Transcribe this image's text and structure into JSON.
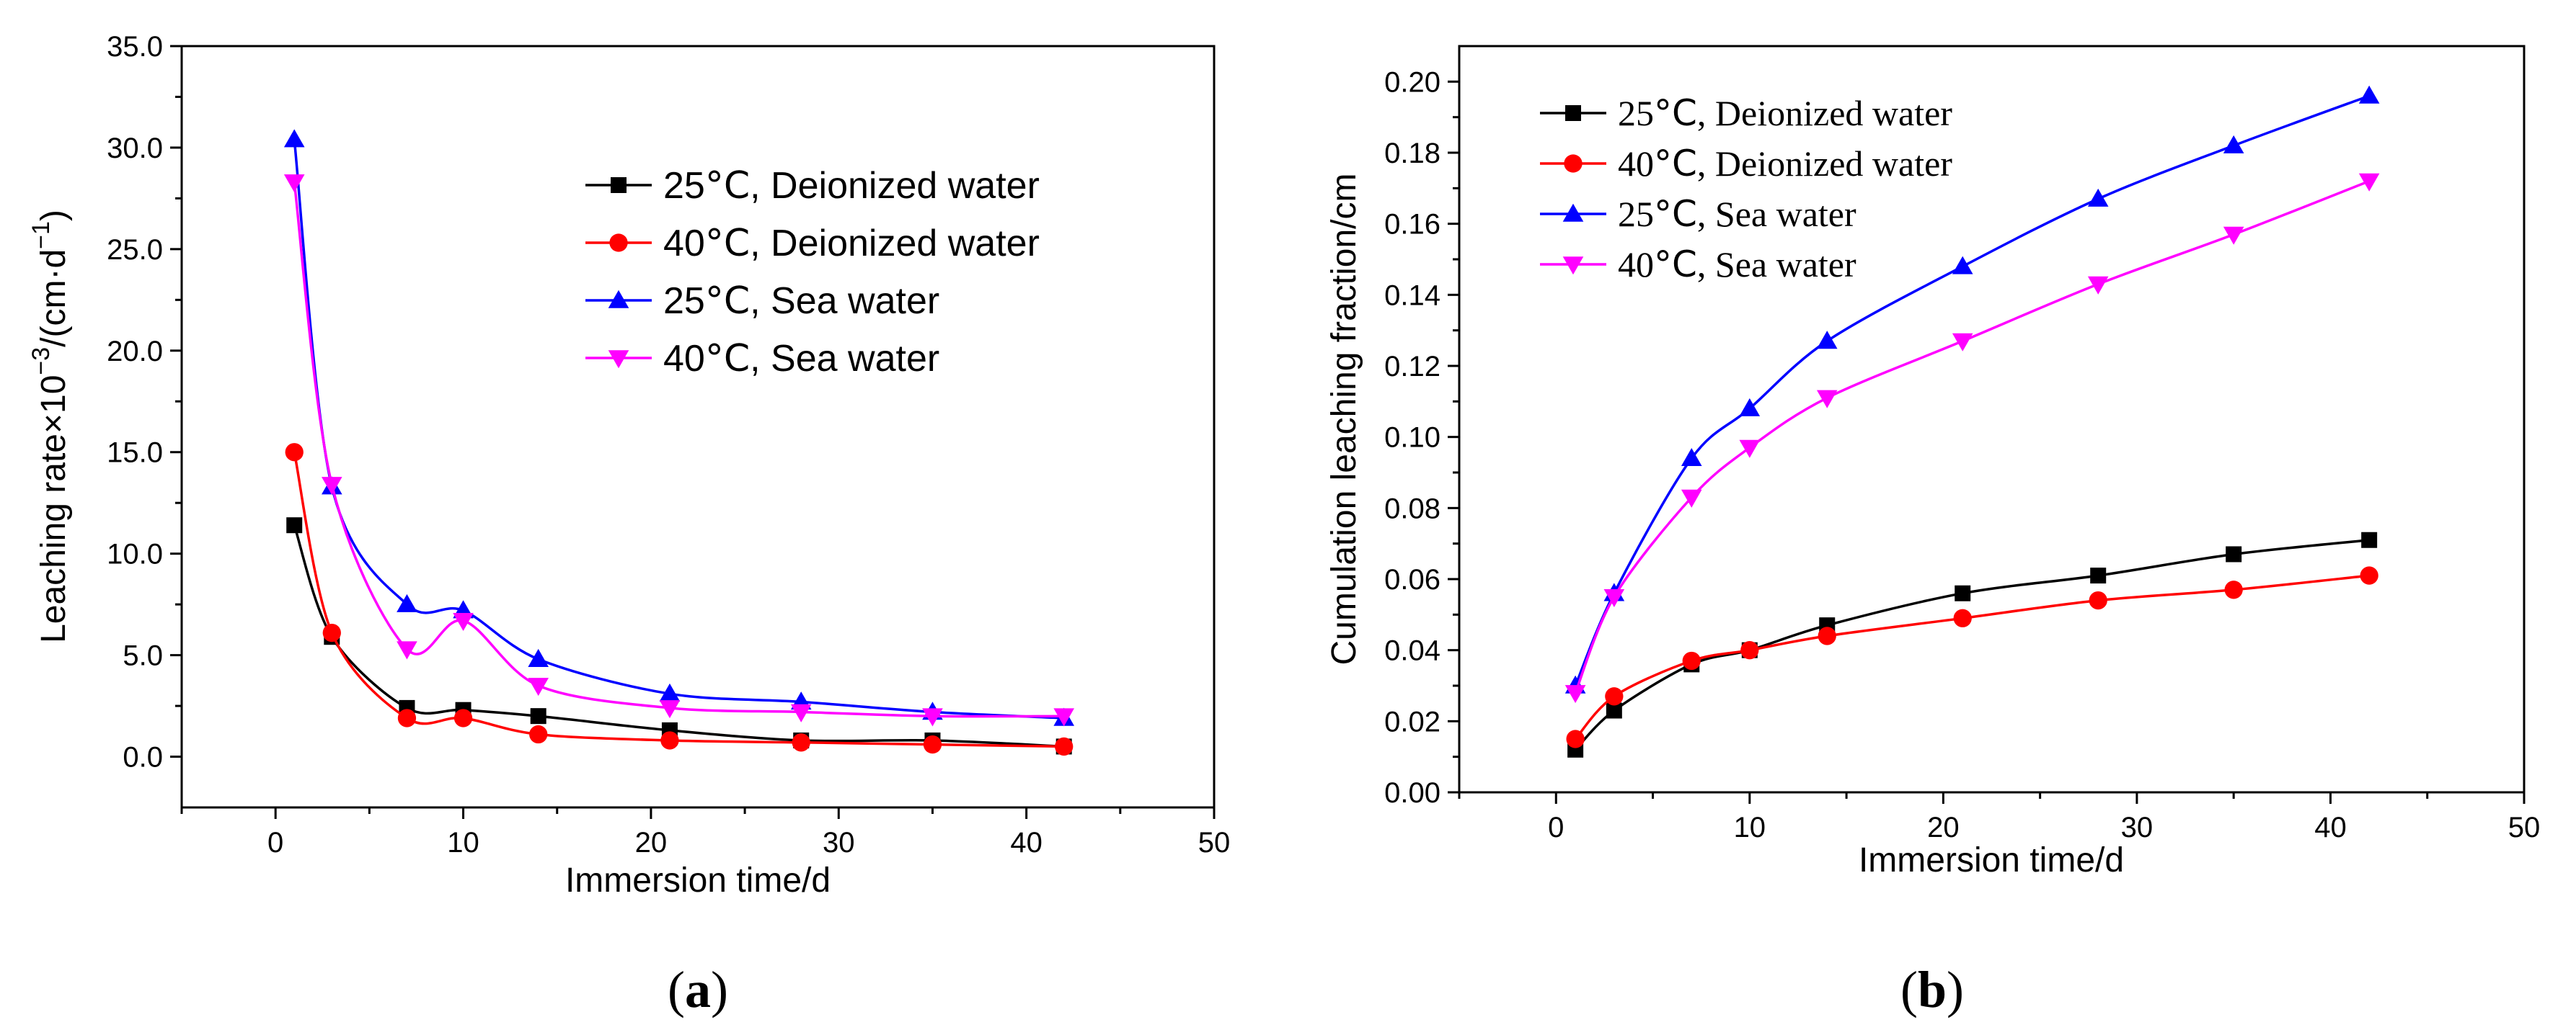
{
  "chart_data": [
    {
      "type": "line",
      "panel_label_open": "(",
      "panel_label_letter": "a",
      "panel_label_close": ")",
      "xlabel": "Immersion time/d",
      "ylabel_main": "Leaching rate×10",
      "ylabel_exp": "−3",
      "ylabel_units": "/(cm·d",
      "ylabel_units_exp": "−1",
      "ylabel_close": ")",
      "xlim": [
        -5,
        50
      ],
      "ylim": [
        -2.5,
        35
      ],
      "xticks": [
        0,
        10,
        20,
        30,
        40,
        50
      ],
      "xtick_labels": [
        "0",
        "10",
        "20",
        "30",
        "40",
        "50"
      ],
      "yticks": [
        0,
        5,
        10,
        15,
        20,
        25,
        30,
        35
      ],
      "ytick_labels": [
        "0.0",
        "5.0",
        "10.0",
        "15.0",
        "20.0",
        "25.0",
        "30.0",
        "35.0"
      ],
      "grid": false,
      "legend_position": "upper-right",
      "x": [
        1,
        3,
        7,
        10,
        14,
        21,
        28,
        35,
        42
      ],
      "series": [
        {
          "name": "25°C, Deionized water",
          "temp": "25",
          "unit": "°C",
          "medium": ", Deionized water",
          "color": "#000000",
          "marker": "square",
          "values": [
            11.4,
            5.9,
            2.4,
            2.3,
            2.0,
            1.3,
            0.8,
            0.8,
            0.5
          ]
        },
        {
          "name": "40°C, Deionized water",
          "temp": "40",
          "unit": "°C",
          "medium": ", Deionized water",
          "color": "#ff0000",
          "marker": "circle",
          "values": [
            15.0,
            6.1,
            1.9,
            1.9,
            1.1,
            0.8,
            0.7,
            0.6,
            0.5
          ]
        },
        {
          "name": "25°C, Sea water",
          "temp": "25",
          "unit": "°C",
          "medium": ", Sea water",
          "color": "#0000ff",
          "marker": "triangle-up",
          "values": [
            30.4,
            13.3,
            7.5,
            7.2,
            4.8,
            3.1,
            2.7,
            2.2,
            1.9
          ]
        },
        {
          "name": "40°C, Sea water",
          "temp": "40",
          "unit": "°C",
          "medium": ", Sea water",
          "color": "#ff00ff",
          "marker": "triangle-down",
          "values": [
            28.3,
            13.4,
            5.3,
            6.7,
            3.5,
            2.4,
            2.2,
            2.0,
            2.0
          ]
        }
      ]
    },
    {
      "type": "line",
      "panel_label_open": "(",
      "panel_label_letter": "b",
      "panel_label_close": ")",
      "xlabel": "Immersion time/d",
      "ylabel": "Cumulation leaching fraction/cm",
      "xlim": [
        -5,
        50
      ],
      "ylim": [
        0,
        0.21
      ],
      "xticks": [
        0,
        10,
        20,
        30,
        40,
        50
      ],
      "xtick_labels": [
        "0",
        "10",
        "20",
        "30",
        "40",
        "50"
      ],
      "yticks": [
        0,
        0.02,
        0.04,
        0.06,
        0.08,
        0.1,
        0.12,
        0.14,
        0.16,
        0.18,
        0.2
      ],
      "ytick_labels": [
        "0.00",
        "0.02",
        "0.04",
        "0.06",
        "0.08",
        "0.10",
        "0.12",
        "0.14",
        "0.16",
        "0.18",
        "0.20"
      ],
      "grid": false,
      "legend_position": "upper-left",
      "x": [
        1,
        3,
        7,
        10,
        14,
        21,
        28,
        35,
        42
      ],
      "series": [
        {
          "name": "25°C, Deionized water",
          "temp": "25",
          "unit": "°C",
          "medium": ", Deionized water",
          "color": "#000000",
          "marker": "square",
          "values": [
            0.012,
            0.023,
            0.036,
            0.04,
            0.047,
            0.056,
            0.061,
            0.067,
            0.071
          ]
        },
        {
          "name": "40°C, Deionized water",
          "temp": "40",
          "unit": "°C",
          "medium": ", Deionized water",
          "color": "#ff0000",
          "marker": "circle",
          "values": [
            0.015,
            0.027,
            0.037,
            0.04,
            0.044,
            0.049,
            0.054,
            0.057,
            0.061
          ]
        },
        {
          "name": "25°C, Sea water",
          "temp": "25",
          "unit": "°C",
          "medium": ", Sea water",
          "color": "#0000ff",
          "marker": "triangle-up",
          "values": [
            0.03,
            0.056,
            0.094,
            0.108,
            0.127,
            0.148,
            0.167,
            0.182,
            0.196
          ]
        },
        {
          "name": "40°C, Sea water",
          "temp": "40",
          "unit": "°C",
          "medium": ", Sea water",
          "color": "#ff00ff",
          "marker": "triangle-down",
          "values": [
            0.028,
            0.055,
            0.083,
            0.097,
            0.111,
            0.127,
            0.143,
            0.157,
            0.172
          ]
        }
      ]
    }
  ]
}
